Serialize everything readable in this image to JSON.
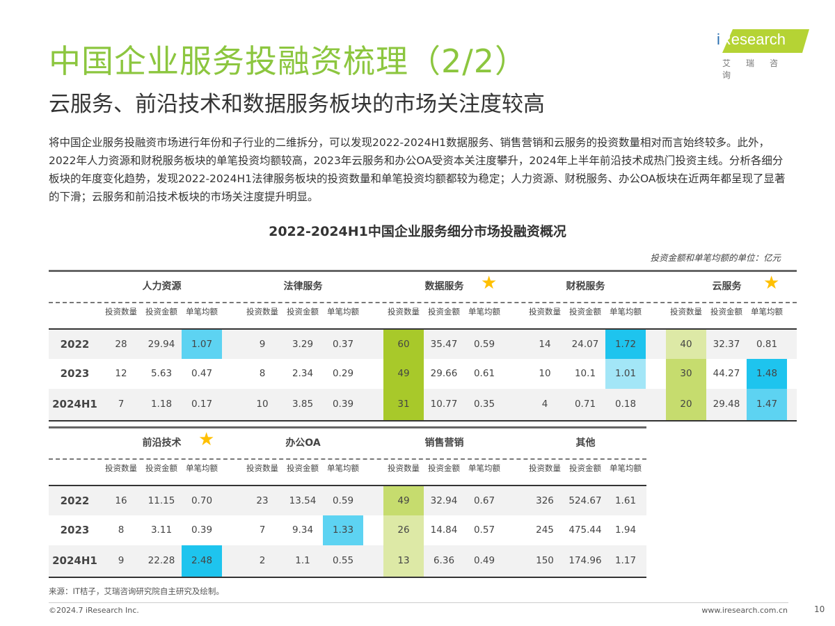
{
  "header": {
    "title": "中国企业服务投融资梳理（2/2）",
    "subtitle": "云服务、前沿技术和数据服务板块的市场关注度较高"
  },
  "logo": {
    "brand": "iResearch",
    "cn": "艾瑞咨询",
    "brand_color": "#b5d334"
  },
  "paragraph": "将中国企业服务投融资市场进行年份和子行业的二维拆分，可以发现2022-2024H1数据服务、销售营销和云服务的投资数量相对而言始终较多。此外，2022年人力资源和财税服务板块的单笔投资均额较高，2023年云服务和办公OA受资本关注度攀升，2024年上半年前沿技术成热门投资主线。分析各细分板块的年度变化趋势，发现2022-2024H1法律服务板块的投资数量和单笔投资均额都较为稳定；人力资源、财税服务、办公OA板块在近两年都呈现了显著的下滑；云服务和前沿技术板块的市场关注度提升明显。",
  "chart_title": "2022-2024H1中国企业服务细分市场投融资概况",
  "unit_note": "投资金额和单笔均额的单位：亿元",
  "colors": {
    "green_dark": "#a8c92a",
    "green_mid": "#c6dc6e",
    "green_light": "#dde9a6",
    "blue_dark": "#1ec4ee",
    "blue_mid": "#5dd3f2",
    "blue_light": "#a3e6f7",
    "star": "#ffc000",
    "title": "#8cc63f"
  },
  "columns": [
    "投资数量",
    "投资金额",
    "单笔均额"
  ],
  "years": [
    "2022",
    "2023",
    "2024H1"
  ],
  "tables": [
    {
      "sectors": [
        {
          "name": "人力资源",
          "star": false,
          "rows": [
            [
              "28",
              "29.94",
              "1.07"
            ],
            [
              "12",
              "5.63",
              "0.47"
            ],
            [
              "7",
              "1.18",
              "0.17"
            ]
          ],
          "highlight": [
            [
              null,
              null,
              "blue_mid"
            ],
            [
              null,
              null,
              null
            ],
            [
              null,
              null,
              null
            ]
          ]
        },
        {
          "name": "法律服务",
          "star": false,
          "rows": [
            [
              "9",
              "3.29",
              "0.37"
            ],
            [
              "8",
              "2.34",
              "0.29"
            ],
            [
              "10",
              "3.85",
              "0.39"
            ]
          ],
          "highlight": [
            [
              null,
              null,
              null
            ],
            [
              null,
              null,
              null
            ],
            [
              null,
              null,
              null
            ]
          ]
        },
        {
          "name": "数据服务",
          "star": true,
          "rows": [
            [
              "60",
              "35.47",
              "0.59"
            ],
            [
              "49",
              "29.66",
              "0.61"
            ],
            [
              "31",
              "10.77",
              "0.35"
            ]
          ],
          "highlight": [
            [
              "green_dark",
              null,
              null
            ],
            [
              "green_dark",
              null,
              null
            ],
            [
              "green_dark",
              null,
              null
            ]
          ]
        },
        {
          "name": "财税服务",
          "star": false,
          "rows": [
            [
              "14",
              "24.07",
              "1.72"
            ],
            [
              "10",
              "10.1",
              "1.01"
            ],
            [
              "4",
              "0.71",
              "0.18"
            ]
          ],
          "highlight": [
            [
              null,
              null,
              "blue_dark"
            ],
            [
              null,
              null,
              "blue_light"
            ],
            [
              null,
              null,
              null
            ]
          ]
        },
        {
          "name": "云服务",
          "star": true,
          "rows": [
            [
              "40",
              "32.37",
              "0.81"
            ],
            [
              "30",
              "44.27",
              "1.48"
            ],
            [
              "20",
              "29.48",
              "1.47"
            ]
          ],
          "highlight": [
            [
              "green_light",
              null,
              null
            ],
            [
              "green_mid",
              null,
              "blue_dark"
            ],
            [
              "green_mid",
              null,
              "blue_mid"
            ]
          ]
        }
      ]
    },
    {
      "sectors": [
        {
          "name": "前沿技术",
          "star": true,
          "rows": [
            [
              "16",
              "11.15",
              "0.70"
            ],
            [
              "8",
              "3.11",
              "0.39"
            ],
            [
              "9",
              "22.28",
              "2.48"
            ]
          ],
          "highlight": [
            [
              null,
              null,
              null
            ],
            [
              null,
              null,
              null
            ],
            [
              null,
              null,
              "blue_dark"
            ]
          ]
        },
        {
          "name": "办公OA",
          "star": false,
          "rows": [
            [
              "23",
              "13.54",
              "0.59"
            ],
            [
              "7",
              "9.34",
              "1.33"
            ],
            [
              "2",
              "1.1",
              "0.55"
            ]
          ],
          "highlight": [
            [
              null,
              null,
              null
            ],
            [
              null,
              null,
              "blue_mid"
            ],
            [
              null,
              null,
              null
            ]
          ]
        },
        {
          "name": "销售营销",
          "star": false,
          "rows": [
            [
              "49",
              "32.94",
              "0.67"
            ],
            [
              "26",
              "14.84",
              "0.57"
            ],
            [
              "13",
              "6.36",
              "0.49"
            ]
          ],
          "highlight": [
            [
              "green_mid",
              null,
              null
            ],
            [
              "green_light",
              null,
              null
            ],
            [
              "green_light",
              null,
              null
            ]
          ]
        },
        {
          "name": "其他",
          "star": false,
          "rows": [
            [
              "326",
              "524.67",
              "1.61"
            ],
            [
              "245",
              "475.44",
              "1.94"
            ],
            [
              "150",
              "174.96",
              "1.17"
            ]
          ],
          "highlight": [
            [
              null,
              null,
              null
            ],
            [
              null,
              null,
              null
            ],
            [
              null,
              null,
              null
            ]
          ]
        }
      ]
    }
  ],
  "footer": {
    "source": "来源：IT桔子，艾瑞咨询研究院自主研究及绘制。",
    "copyright": "©2024.7 iResearch Inc.",
    "url": "www.iresearch.com.cn",
    "page": "10"
  }
}
